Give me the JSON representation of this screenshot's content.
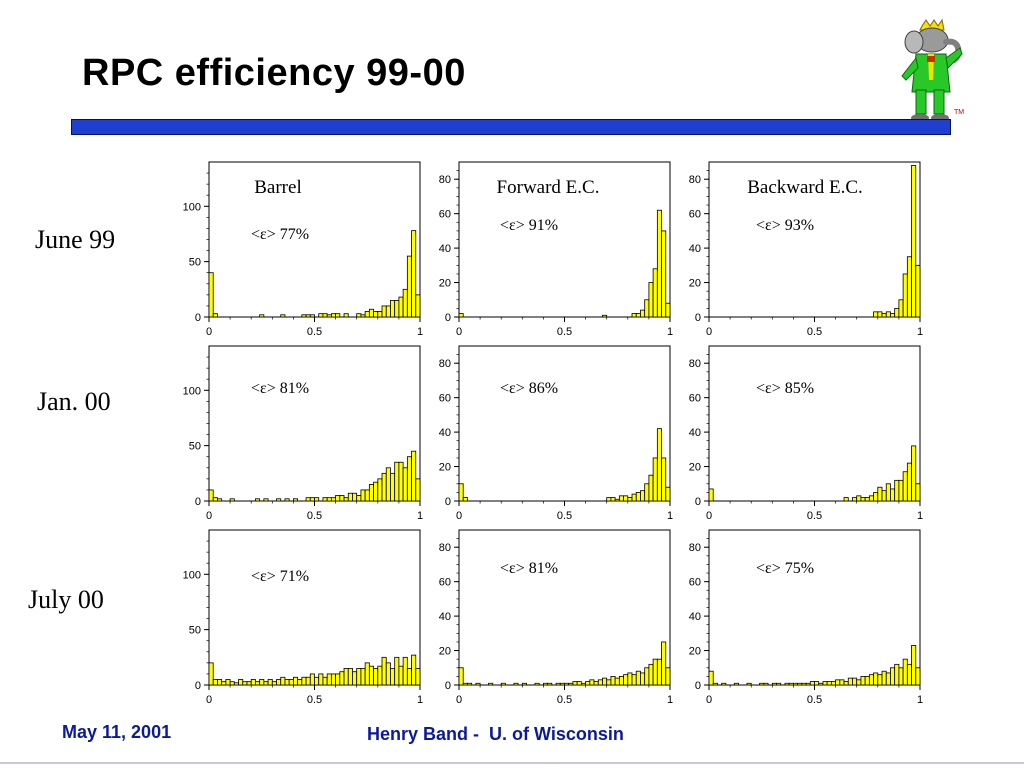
{
  "slide": {
    "title": "RPC efficiency 99-00",
    "footer_date": "May 11, 2001",
    "footer_author": "Henry Band -  U. of Wisconsin",
    "trademark": "TM",
    "logo_icon": "elephant-mascot-icon"
  },
  "colors": {
    "bar": "#ffff00",
    "rule": "#1f3fd0",
    "footer": "#0a1aa0"
  },
  "rows": [
    "June 99",
    "Jan. 00",
    "July 00"
  ],
  "columns": [
    "Barrel",
    "Forward E.C.",
    "Backward E.C."
  ],
  "chart_data": [
    {
      "type": "histogram",
      "row": "June 99",
      "column": "Barrel",
      "title": "Barrel",
      "annotation": "<ε> 77%",
      "x_range": [
        0,
        1
      ],
      "x_ticks": [
        "0",
        "0.5",
        "1"
      ],
      "ylim": [
        0,
        140
      ],
      "y_ticks": [
        "0",
        "50",
        "100"
      ],
      "values": [
        40,
        3,
        0,
        0,
        0,
        0,
        0,
        0,
        0,
        0,
        0,
        0,
        2,
        0,
        0,
        0,
        0,
        2,
        0,
        0,
        0,
        0,
        2,
        2,
        2,
        0,
        3,
        3,
        2,
        3,
        3,
        0,
        3,
        0,
        0,
        3,
        2,
        5,
        7,
        5,
        5,
        10,
        10,
        15,
        15,
        18,
        25,
        55,
        78,
        20
      ]
    },
    {
      "type": "histogram",
      "row": "June 99",
      "column": "Forward E.C.",
      "title": "Forward E.C.",
      "annotation": "<ε> 91%",
      "x_range": [
        0,
        1
      ],
      "x_ticks": [
        "0",
        "0.5",
        "1"
      ],
      "ylim": [
        0,
        90
      ],
      "y_ticks": [
        "0",
        "20",
        "40",
        "60",
        "80"
      ],
      "values": [
        2,
        0,
        0,
        0,
        0,
        0,
        0,
        0,
        0,
        0,
        0,
        0,
        0,
        0,
        0,
        0,
        0,
        0,
        0,
        0,
        0,
        0,
        0,
        0,
        0,
        0,
        0,
        0,
        0,
        0,
        0,
        0,
        0,
        0,
        1,
        0,
        0,
        0,
        0,
        0,
        0,
        2,
        2,
        4,
        10,
        20,
        28,
        62,
        50,
        8
      ]
    },
    {
      "type": "histogram",
      "row": "June 99",
      "column": "Backward E.C.",
      "title": "Backward E.C.",
      "annotation": "<ε> 93%",
      "x_range": [
        0,
        1
      ],
      "x_ticks": [
        "0",
        "0.5",
        "1"
      ],
      "ylim": [
        0,
        90
      ],
      "y_ticks": [
        "0",
        "20",
        "40",
        "60",
        "80"
      ],
      "values": [
        0,
        0,
        0,
        0,
        0,
        0,
        0,
        0,
        0,
        0,
        0,
        0,
        0,
        0,
        0,
        0,
        0,
        0,
        0,
        0,
        0,
        0,
        0,
        0,
        0,
        0,
        0,
        0,
        0,
        0,
        0,
        0,
        0,
        0,
        0,
        0,
        0,
        0,
        0,
        3,
        3,
        2,
        3,
        2,
        5,
        10,
        25,
        35,
        88,
        30
      ]
    },
    {
      "type": "histogram",
      "row": "Jan. 00",
      "column": "Barrel",
      "title": "",
      "annotation": "<ε> 81%",
      "x_range": [
        0,
        1
      ],
      "x_ticks": [
        "0",
        "0.5",
        "1"
      ],
      "ylim": [
        0,
        140
      ],
      "y_ticks": [
        "0",
        "50",
        "100"
      ],
      "values": [
        10,
        3,
        2,
        0,
        0,
        2,
        0,
        0,
        0,
        0,
        0,
        2,
        0,
        2,
        0,
        0,
        2,
        0,
        2,
        0,
        2,
        0,
        0,
        3,
        3,
        3,
        0,
        3,
        3,
        3,
        5,
        5,
        3,
        7,
        7,
        5,
        10,
        10,
        15,
        17,
        20,
        25,
        30,
        25,
        35,
        35,
        30,
        40,
        45,
        20
      ]
    },
    {
      "type": "histogram",
      "row": "Jan. 00",
      "column": "Forward E.C.",
      "title": "",
      "annotation": "<ε> 86%",
      "x_range": [
        0,
        1
      ],
      "x_ticks": [
        "0",
        "0.5",
        "1"
      ],
      "ylim": [
        0,
        90
      ],
      "y_ticks": [
        "0",
        "20",
        "40",
        "60",
        "80"
      ],
      "values": [
        10,
        2,
        0,
        0,
        0,
        0,
        0,
        0,
        0,
        0,
        0,
        0,
        0,
        0,
        0,
        0,
        0,
        0,
        0,
        0,
        0,
        0,
        0,
        0,
        0,
        0,
        0,
        0,
        0,
        0,
        0,
        0,
        0,
        0,
        0,
        2,
        2,
        1,
        3,
        3,
        2,
        4,
        5,
        6,
        10,
        15,
        25,
        42,
        25,
        8
      ]
    },
    {
      "type": "histogram",
      "row": "Jan. 00",
      "column": "Backward E.C.",
      "title": "",
      "annotation": "<ε> 85%",
      "x_range": [
        0,
        1
      ],
      "x_ticks": [
        "0",
        "0.5",
        "1"
      ],
      "ylim": [
        0,
        90
      ],
      "y_ticks": [
        "0",
        "20",
        "40",
        "60",
        "80"
      ],
      "values": [
        7,
        0,
        0,
        0,
        0,
        0,
        0,
        0,
        0,
        0,
        0,
        0,
        0,
        0,
        0,
        0,
        0,
        0,
        0,
        0,
        0,
        0,
        0,
        0,
        0,
        0,
        0,
        0,
        0,
        0,
        0,
        0,
        2,
        0,
        2,
        3,
        2,
        2,
        3,
        5,
        8,
        6,
        10,
        7,
        12,
        12,
        17,
        22,
        32,
        10
      ]
    },
    {
      "type": "histogram",
      "row": "July 00",
      "column": "Barrel",
      "title": "",
      "annotation": "<ε> 71%",
      "x_range": [
        0,
        1
      ],
      "x_ticks": [
        "0",
        "0.5",
        "1"
      ],
      "ylim": [
        0,
        140
      ],
      "y_ticks": [
        "0",
        "50",
        "100"
      ],
      "values": [
        20,
        5,
        5,
        3,
        5,
        3,
        2,
        5,
        3,
        3,
        5,
        3,
        5,
        3,
        5,
        3,
        5,
        7,
        5,
        5,
        7,
        5,
        7,
        7,
        10,
        7,
        10,
        7,
        10,
        10,
        10,
        12,
        15,
        15,
        12,
        15,
        15,
        20,
        17,
        15,
        17,
        25,
        20,
        15,
        25,
        17,
        25,
        15,
        27,
        15
      ]
    },
    {
      "type": "histogram",
      "row": "July 00",
      "column": "Forward E.C.",
      "title": "",
      "annotation": "<ε> 81%",
      "x_range": [
        0,
        1
      ],
      "x_ticks": [
        "0",
        "0.5",
        "1"
      ],
      "ylim": [
        0,
        90
      ],
      "y_ticks": [
        "0",
        "20",
        "40",
        "60",
        "80"
      ],
      "values": [
        10,
        1,
        1,
        0,
        1,
        0,
        0,
        1,
        0,
        0,
        1,
        0,
        0,
        1,
        0,
        1,
        0,
        0,
        1,
        0,
        1,
        1,
        0,
        1,
        1,
        1,
        1,
        2,
        2,
        1,
        2,
        3,
        2,
        3,
        4,
        3,
        5,
        4,
        5,
        6,
        7,
        6,
        8,
        7,
        10,
        12,
        15,
        15,
        25,
        10
      ]
    },
    {
      "type": "histogram",
      "row": "July 00",
      "column": "Backward E.C.",
      "title": "",
      "annotation": "<ε> 75%",
      "x_range": [
        0,
        1
      ],
      "x_ticks": [
        "0",
        "0.5",
        "1"
      ],
      "ylim": [
        0,
        90
      ],
      "y_ticks": [
        "0",
        "20",
        "40",
        "60",
        "80"
      ],
      "values": [
        8,
        1,
        0,
        1,
        0,
        0,
        1,
        0,
        0,
        1,
        0,
        0,
        1,
        1,
        0,
        1,
        1,
        0,
        1,
        1,
        1,
        1,
        1,
        1,
        2,
        2,
        1,
        2,
        2,
        2,
        3,
        3,
        2,
        4,
        4,
        3,
        5,
        5,
        6,
        7,
        6,
        8,
        7,
        10,
        12,
        10,
        15,
        12,
        23,
        10
      ]
    }
  ]
}
